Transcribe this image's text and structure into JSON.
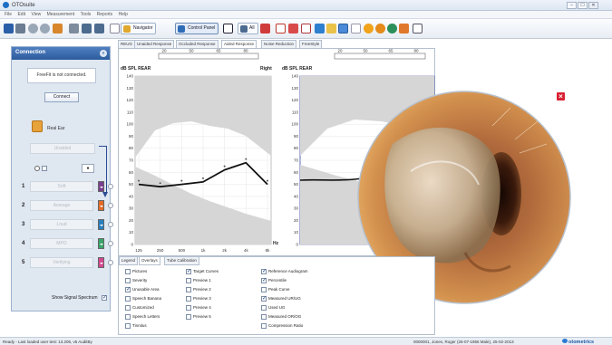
{
  "window": {
    "title": "OTOsuite",
    "controls": [
      "–",
      "☐",
      "✕"
    ]
  },
  "menu": [
    "File",
    "Edit",
    "View",
    "Measurement",
    "Tools",
    "Reports",
    "Help"
  ],
  "toolbar": {
    "navigator_label": "Navigator",
    "control_panel_label": "Control Panel",
    "all_label": "All"
  },
  "connection_panel": {
    "title": "Connection",
    "status": "FreeFit is not connected.",
    "connect_label": "Connect",
    "real_ear_label": "Real Ear",
    "unaided_label": "Unaided",
    "steps": [
      {
        "num": "1",
        "label": "Soft",
        "color": "#7a3f8f"
      },
      {
        "num": "2",
        "label": "Average",
        "color": "#e36c2a"
      },
      {
        "num": "3",
        "label": "Loud",
        "color": "#2a7fc0"
      },
      {
        "num": "4",
        "label": "MPO",
        "color": "#3aa56a"
      },
      {
        "num": "5",
        "label": "Verifying",
        "color": "#d4488f"
      }
    ],
    "show_signal_label": "Show Signal Spectrum"
  },
  "tabs": [
    "REUG",
    "Unaided Response",
    "Occluded Response",
    "Aided Response",
    "Noise Reduction",
    "FreeStyle"
  ],
  "active_tab": 3,
  "chart": {
    "ylabel": "dB SPL REAR",
    "side_label": "Right",
    "yticks": [
      "140",
      "130",
      "120",
      "110",
      "100",
      "90",
      "80",
      "70",
      "60",
      "50",
      "40",
      "30",
      "20",
      "10",
      "0"
    ],
    "xticks": [
      "125",
      "250",
      "500",
      "1k",
      "2k",
      "4k",
      "8k"
    ],
    "xunit": "Hz",
    "top_ticks": [
      "20",
      "50",
      "65",
      "80"
    ],
    "second_ylabel": "dB SPL REAR",
    "second_top_ticks": [
      "20",
      "50",
      "65",
      "80"
    ]
  },
  "chart_data": {
    "type": "line",
    "title": "",
    "xlabel": "Hz",
    "ylabel": "dB SPL REAR",
    "x": [
      "125",
      "250",
      "500",
      "1k",
      "2k",
      "4k",
      "8k"
    ],
    "ylim": [
      0,
      140
    ],
    "series": [
      {
        "values": [
          50,
          48,
          50,
          52,
          62,
          68,
          50
        ]
      }
    ]
  },
  "bottom_tabs": [
    "Legend",
    "Overlays",
    "Tube Calibration"
  ],
  "active_bottom_tab": 1,
  "overlays": {
    "col1": [
      {
        "label": "Pictures",
        "checked": false
      },
      {
        "label": "Severity",
        "checked": false
      },
      {
        "label": "Unusable Area",
        "checked": true
      },
      {
        "label": "Speech Banana",
        "checked": false
      },
      {
        "label": "Customized",
        "checked": false
      },
      {
        "label": "Speech Letters",
        "checked": false
      },
      {
        "label": "Tinnitus",
        "checked": false
      }
    ],
    "col2": [
      {
        "label": "Target Curves",
        "checked": true
      },
      {
        "label": "Preview 1",
        "checked": false
      },
      {
        "label": "Preview 2",
        "checked": false
      },
      {
        "label": "Preview 3",
        "checked": false
      },
      {
        "label": "Preview 4",
        "checked": false
      },
      {
        "label": "Preview 5",
        "checked": false
      }
    ],
    "col3": [
      {
        "label": "Reference Audiogram",
        "checked": true
      },
      {
        "label": "Percentile",
        "checked": true
      },
      {
        "label": "Peak Curve",
        "checked": false
      },
      {
        "label": "Measured UR/UG",
        "checked": true
      },
      {
        "label": "Used UG",
        "checked": false
      },
      {
        "label": "Measured OR/OG",
        "checked": false
      },
      {
        "label": "Compression Ratio",
        "checked": false
      }
    ]
  },
  "status": {
    "left": "Ready - Last loaded user test: 13.205, v5 AuditBy",
    "right": "0000001, Jones, Roger (26-07-1956 Male), 25-02-2013",
    "brand": "otometrics"
  },
  "colors": {
    "accent": "#2c5c9e",
    "curve": "#111111",
    "grey_area": "#d6d6d6",
    "close_red": "#d82133"
  }
}
